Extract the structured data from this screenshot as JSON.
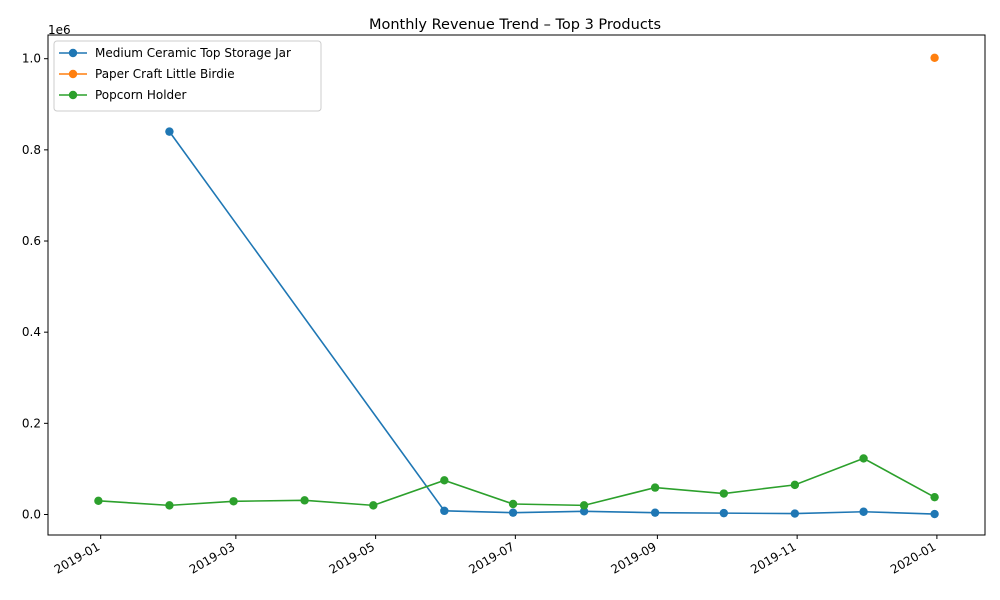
{
  "chart_data": {
    "type": "line",
    "title": "Monthly Revenue Trend – Top 3 Products",
    "xlabel": "",
    "ylabel": "",
    "y_offset_label": "1e6",
    "xlim": [
      "2018-12-09",
      "2020-01-22"
    ],
    "ylim": [
      -45000,
      1052000
    ],
    "x_ticks": [
      "2019-01",
      "2019-03",
      "2019-05",
      "2019-07",
      "2019-09",
      "2019-11",
      "2020-01"
    ],
    "y_ticks": [
      0.0,
      0.2,
      0.4,
      0.6,
      0.8,
      1.0
    ],
    "grid": false,
    "legend_position": "top-left",
    "series": [
      {
        "name": "Medium Ceramic Top Storage Jar",
        "color": "#1f77b4",
        "points": [
          [
            "2019-01-31",
            840000
          ],
          [
            "2019-05-31",
            8000
          ],
          [
            "2019-06-30",
            4000
          ],
          [
            "2019-07-31",
            7000
          ],
          [
            "2019-08-31",
            4000
          ],
          [
            "2019-09-30",
            3000
          ],
          [
            "2019-10-31",
            2000
          ],
          [
            "2019-11-30",
            6000
          ],
          [
            "2019-12-31",
            1000
          ]
        ]
      },
      {
        "name": "Paper Craft Little Birdie",
        "color": "#ff7f0e",
        "points": [
          [
            "2019-12-31",
            1002000
          ]
        ]
      },
      {
        "name": "Popcorn Holder",
        "color": "#2ca02c",
        "points": [
          [
            "2018-12-31",
            30000
          ],
          [
            "2019-01-31",
            20000
          ],
          [
            "2019-02-28",
            29000
          ],
          [
            "2019-03-31",
            31000
          ],
          [
            "2019-04-30",
            20000
          ],
          [
            "2019-05-31",
            75000
          ],
          [
            "2019-06-30",
            23000
          ],
          [
            "2019-07-31",
            20000
          ],
          [
            "2019-08-31",
            59000
          ],
          [
            "2019-09-30",
            46000
          ],
          [
            "2019-10-31",
            65000
          ],
          [
            "2019-11-30",
            123000
          ],
          [
            "2019-12-31",
            38000
          ]
        ]
      }
    ]
  }
}
